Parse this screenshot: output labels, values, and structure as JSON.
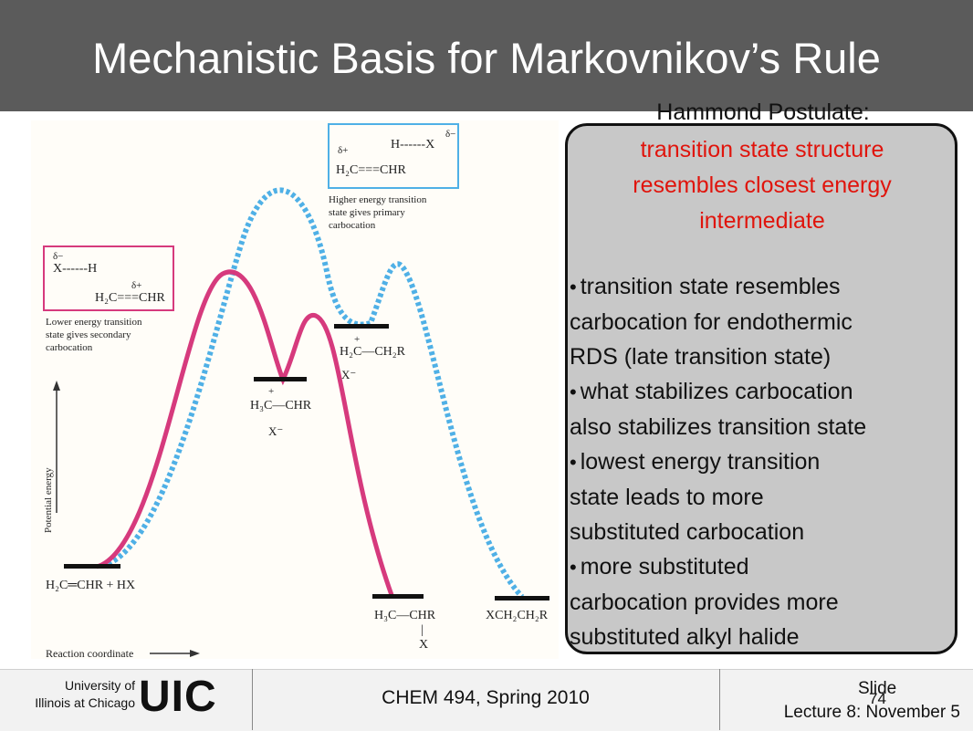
{
  "title": "Mechanistic Basis for Markovnikov’s Rule",
  "callout": {
    "heading": "Hammond Postulate:",
    "definition": [
      "transition state structure",
      "resembles closest energy",
      "intermediate"
    ],
    "bullets": [
      [
        "transition state resembles",
        "carbocation for endothermic",
        "RDS (late transition state)"
      ],
      [
        "what stabilizes carbocation",
        "also stabilizes transition state"
      ],
      [
        "lowest energy transition",
        "state leads to more",
        "substituted carbocation"
      ],
      [
        "more substituted",
        "carbocation provides more",
        "substituted alkyl halide"
      ]
    ]
  },
  "diagram": {
    "y_axis_label": "Potential energy",
    "x_axis_label": "Reaction coordinate",
    "box_pink_ts": {
      "line1": "δ−",
      "line2": "X------H",
      "line3": "δ+",
      "line4": "H₂C===CHR"
    },
    "box_blue_ts": {
      "line1": "δ+",
      "line2": "H------X",
      "line3": "δ−",
      "line4": "H₂C===CHR"
    },
    "pink_caption": [
      "Lower energy transition",
      "state gives secondary",
      "carbocation"
    ],
    "blue_caption": [
      "Higher energy transition",
      "state gives primary",
      "carbocation"
    ],
    "start_label": "H₂C═CHR + HX",
    "secondary_cation": {
      "plus": "+",
      "formula": "H₃C—CHR",
      "anion": "X⁻"
    },
    "primary_cation": {
      "plus": "+",
      "formula": "H₂C—CH₂R",
      "anion": "X⁻"
    },
    "markovnikov_product": {
      "formula": "H₃C—CHR",
      "bond": "|",
      "halide": "X"
    },
    "anti_markovnikov_product": "XCH₂CH₂R",
    "colors": {
      "pink_path": "#d63a7d",
      "blue_path": "#4fb0e6"
    }
  },
  "footer": {
    "university_line1": "University of",
    "university_line2": "Illinois at Chicago",
    "logo_text": "UIC",
    "course": "CHEM 494, Spring 2010",
    "slide_label": "Slide",
    "slide_number": "74",
    "lecture": "Lecture 8:  November 5"
  }
}
